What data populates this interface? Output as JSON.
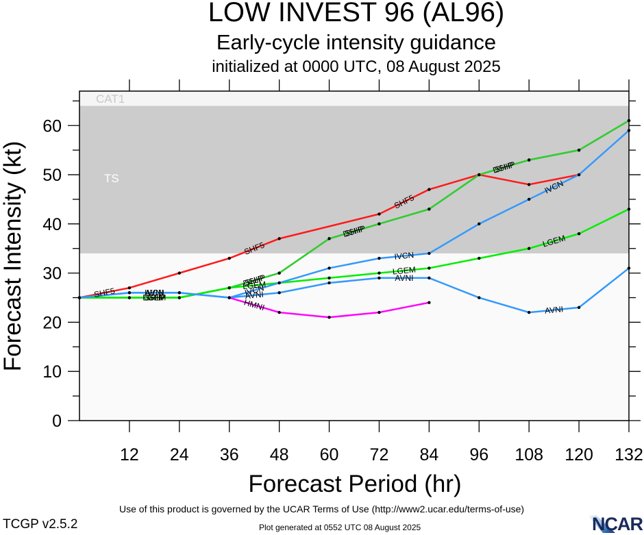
{
  "header": {
    "title": "LOW INVEST 96 (AL96)",
    "subtitle": "Early-cycle intensity guidance",
    "init": "initialized at 0000 UTC, 08 August 2025"
  },
  "footer": {
    "terms": "Use of this product is governed by the UCAR Terms of Use (http://www2.ucar.edu/terms-of-use)",
    "version": "TCGP v2.5.2",
    "generated": "Plot generated at 0552 UTC   08 August 2025",
    "logo": "NCAR"
  },
  "chart_data": {
    "type": "line",
    "title": "LOW INVEST 96 (AL96)",
    "xlabel": "Forecast Period (hr)",
    "ylabel": "Forecast Intensity (kt)",
    "xlim": [
      0,
      132
    ],
    "ylim": [
      0,
      67
    ],
    "xticks": [
      12,
      24,
      36,
      48,
      60,
      72,
      84,
      96,
      108,
      120,
      132
    ],
    "yticks": [
      0,
      10,
      20,
      30,
      40,
      50,
      60
    ],
    "grid": false,
    "bands": [
      {
        "name": "TS",
        "from": 34,
        "to": 64,
        "color": "#cccccc",
        "label_color": "#ffffff"
      },
      {
        "name": "CAT1",
        "from": 64,
        "to": 67,
        "color": "#f5f5f5",
        "label_color": "#c8c8c8"
      }
    ],
    "background_color": "#fafafa",
    "series": [
      {
        "name": "SHF5",
        "color": "#ff1a1a",
        "x": [
          0,
          12,
          24,
          36,
          48,
          72,
          84,
          96,
          108,
          120
        ],
        "y": [
          25,
          27,
          30,
          33,
          37,
          42,
          47,
          50,
          48,
          50
        ],
        "label_at": [
          1,
          4,
          6
        ]
      },
      {
        "name": "DSHP",
        "color": "#33cc33",
        "x": [
          0,
          12,
          24,
          36,
          48,
          60,
          72,
          84,
          96,
          108,
          120,
          132
        ],
        "y": [
          25,
          25,
          25,
          27,
          30,
          37,
          40,
          43,
          50,
          53,
          55,
          61
        ],
        "label_at": [
          2,
          4,
          6,
          9
        ]
      },
      {
        "name": "SHIP",
        "color": "#33cc33",
        "x": [
          0,
          12,
          24,
          36,
          48,
          60,
          72,
          84,
          96,
          108,
          120,
          132
        ],
        "y": [
          25,
          25,
          25,
          27,
          30,
          37,
          40,
          43,
          50,
          53,
          55,
          61
        ],
        "label_at": [
          2,
          4,
          6,
          9
        ]
      },
      {
        "name": "LGEM",
        "color": "#00ee00",
        "x": [
          0,
          12,
          24,
          36,
          48,
          60,
          72,
          84,
          96,
          108,
          120,
          132
        ],
        "y": [
          25,
          25,
          25,
          27,
          28,
          29,
          30,
          31,
          33,
          35,
          38,
          43
        ],
        "label_at": [
          2,
          4,
          7,
          10
        ]
      },
      {
        "name": "IVCN",
        "color": "#3399ff",
        "x": [
          0,
          12,
          24,
          36,
          48,
          60,
          72,
          84,
          96,
          108,
          120,
          132
        ],
        "y": [
          25,
          26,
          26,
          25,
          28,
          31,
          33,
          34,
          40,
          45,
          50,
          59
        ],
        "label_at": [
          2,
          4,
          7,
          10
        ]
      },
      {
        "name": "AVNI",
        "color": "#3399ff",
        "x": [
          0,
          12,
          24,
          36,
          48,
          60,
          72,
          84,
          96,
          108,
          120,
          132
        ],
        "y": [
          25,
          26,
          26,
          25,
          26,
          28,
          29,
          29,
          25,
          22,
          23,
          31
        ],
        "label_at": [
          2,
          4,
          7,
          10
        ]
      },
      {
        "name": "HMNI",
        "color": "#ff00ff",
        "x": [
          36,
          48,
          60,
          72,
          84
        ],
        "y": [
          25,
          22,
          21,
          22,
          24
        ],
        "label_at": [
          1
        ]
      }
    ]
  }
}
